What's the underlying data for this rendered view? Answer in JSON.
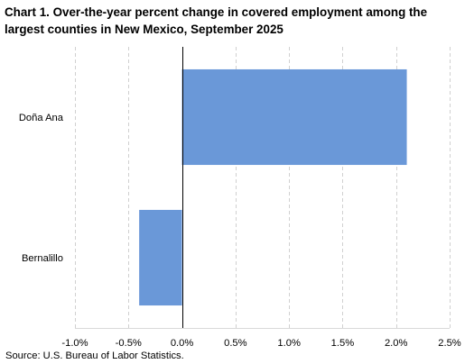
{
  "chart_data": {
    "type": "bar",
    "orientation": "horizontal",
    "title": "Chart 1.  Over-the-year percent change in covered employment among the largest counties in New Mexico, September 2025",
    "categories": [
      "Doña Ana",
      "Bernalillo"
    ],
    "values": [
      2.1,
      -0.4
    ],
    "xlim": [
      -1.0,
      2.5
    ],
    "xticks": [
      -1.0,
      -0.5,
      0.0,
      0.5,
      1.0,
      1.5,
      2.0,
      2.5
    ],
    "xtick_labels": [
      "-1.0%",
      "-0.5%",
      "0.0%",
      "0.5%",
      "1.0%",
      "1.5%",
      "2.0%",
      "2.5%"
    ],
    "xlabel": "",
    "ylabel": "",
    "grid": "vertical dashed",
    "legend": "none",
    "bar_color": "#6a98d8",
    "source": "Source: U.S. Bureau of Labor Statistics."
  }
}
